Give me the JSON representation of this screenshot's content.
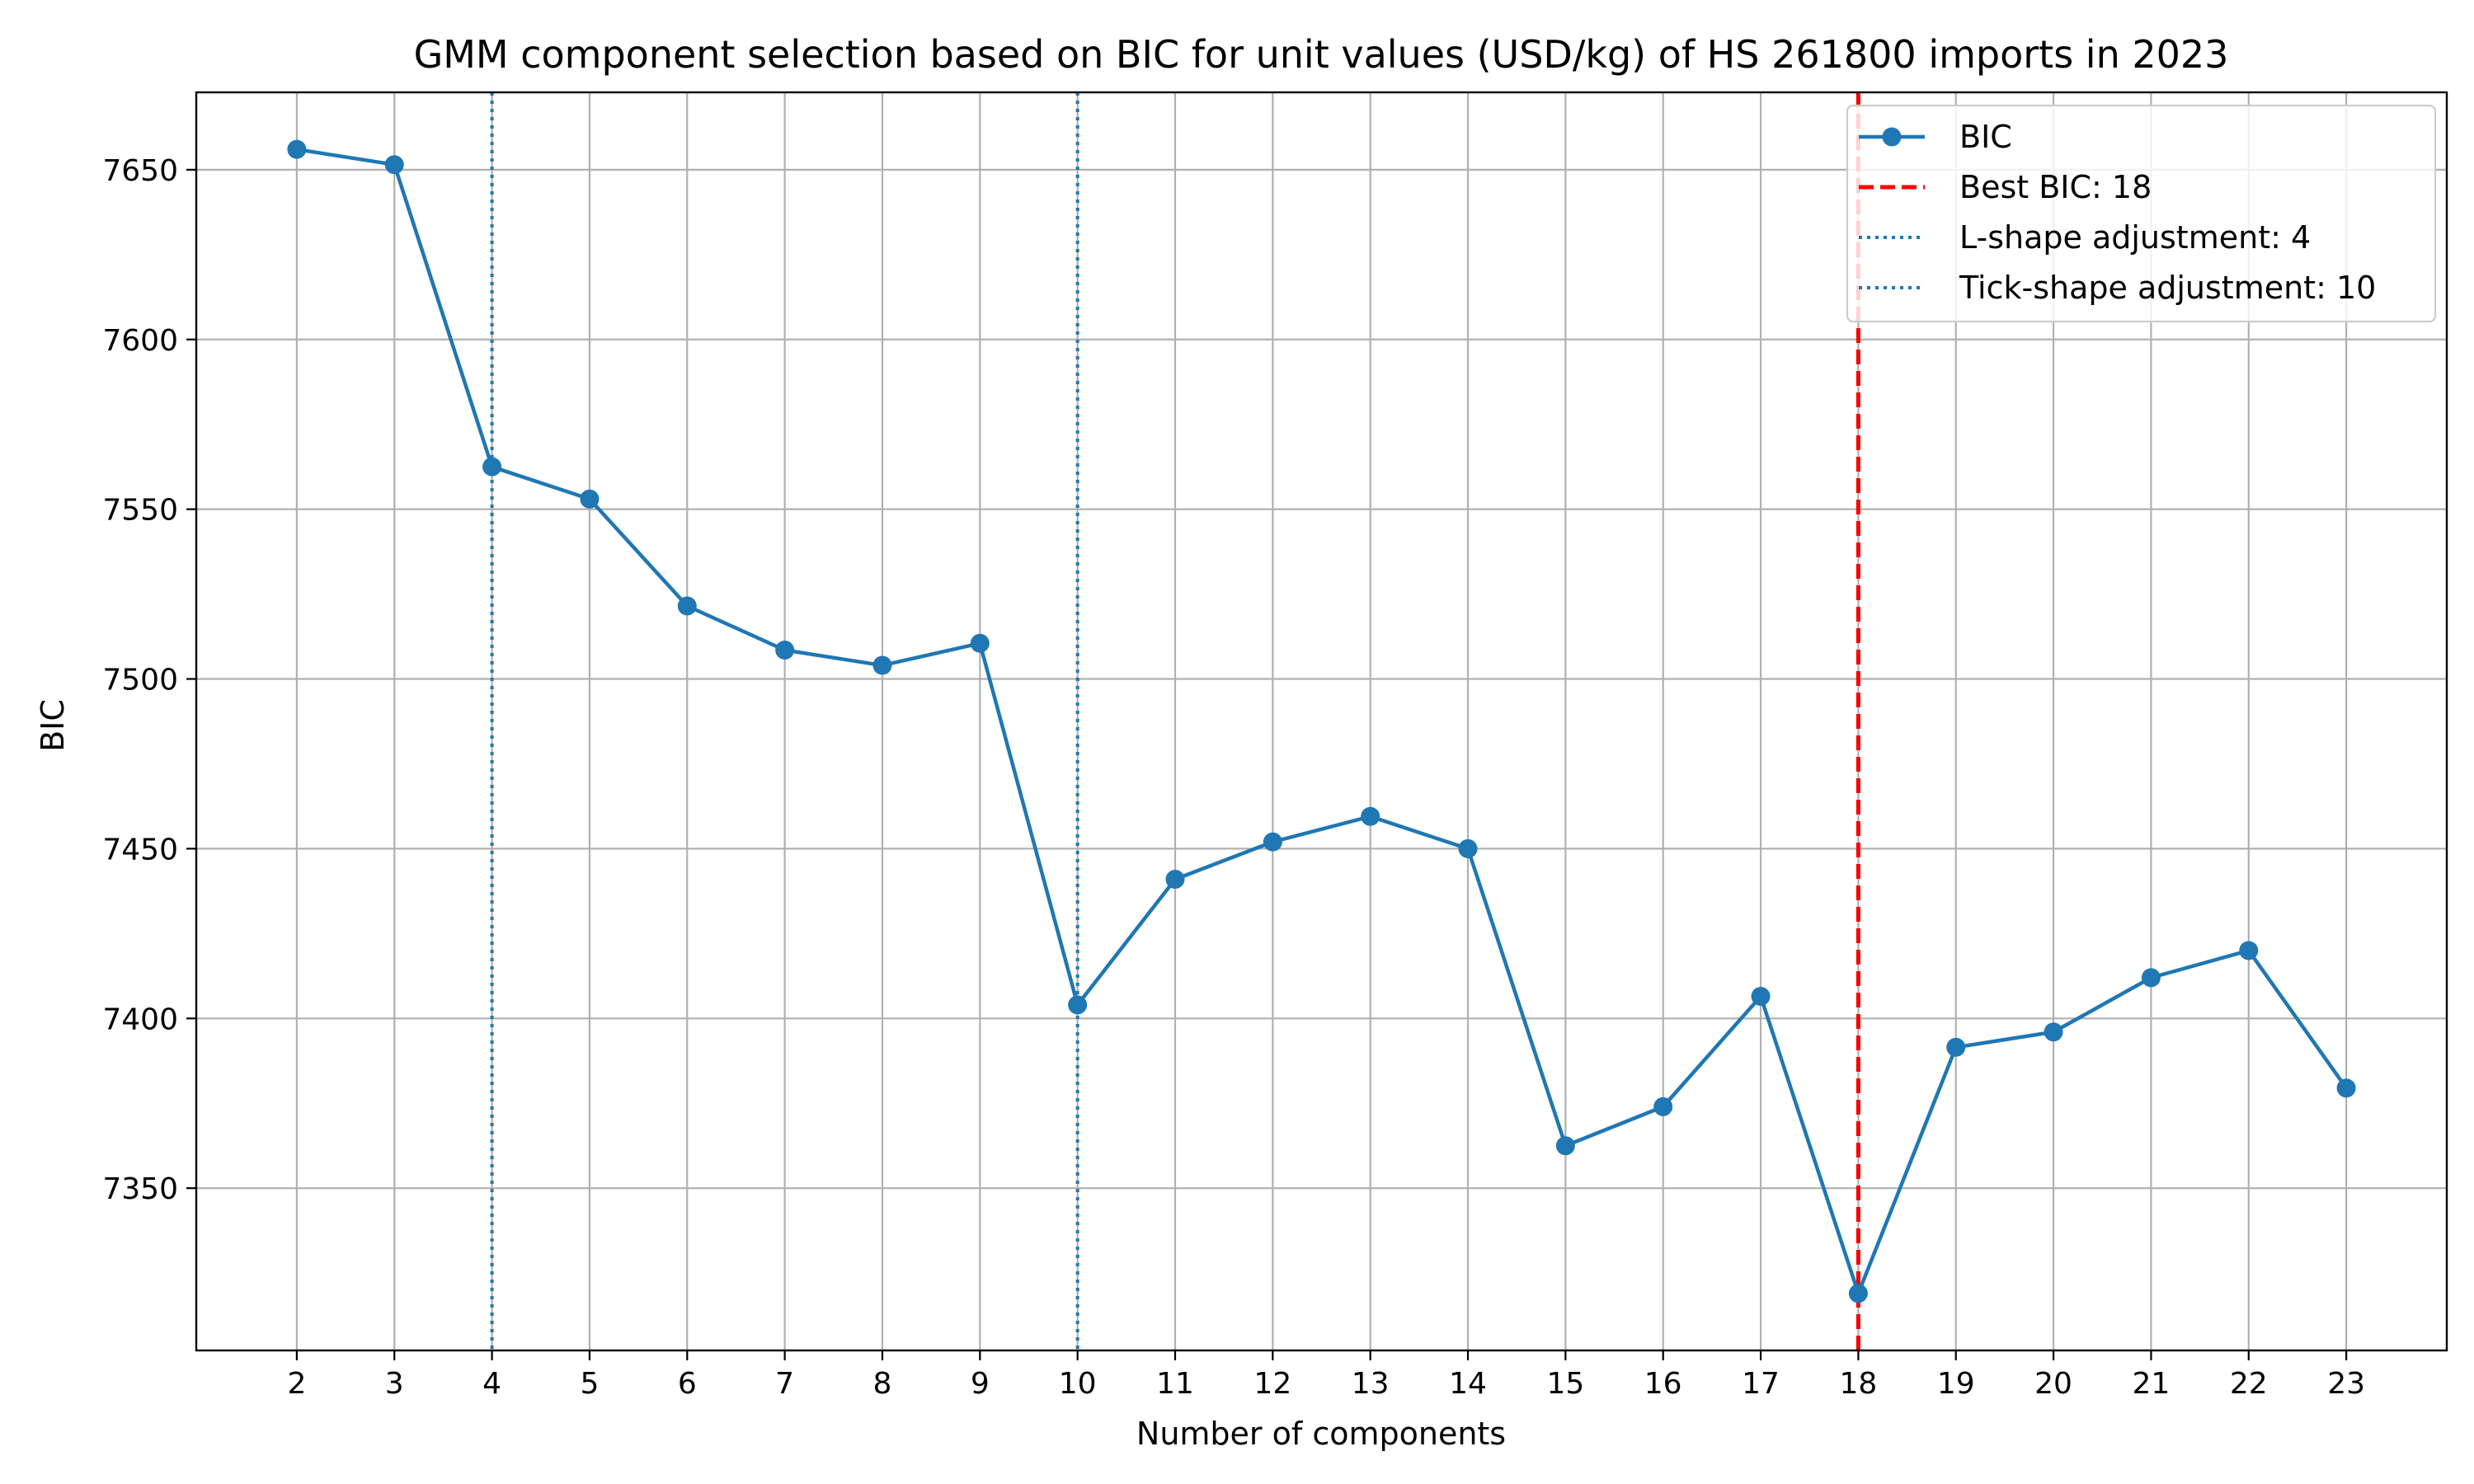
{
  "chart_data": {
    "type": "line",
    "title": "GMM component selection based on BIC for unit values (USD/kg) of HS 261800 imports in 2023",
    "xlabel": "Number of components",
    "ylabel": "BIC",
    "x": [
      2,
      3,
      4,
      5,
      6,
      7,
      8,
      9,
      10,
      11,
      12,
      13,
      14,
      15,
      16,
      17,
      18,
      19,
      20,
      21,
      22,
      23
    ],
    "series": [
      {
        "name": "BIC",
        "color": "#1f77b4",
        "values": [
          7656,
          7651.5,
          7562.5,
          7553,
          7521.5,
          7508.5,
          7504,
          7510.5,
          7404,
          7441,
          7452,
          7459.5,
          7450,
          7362.5,
          7374,
          7406.5,
          7319,
          7391.5,
          7396,
          7412,
          7420,
          7379.5
        ]
      }
    ],
    "vlines": [
      {
        "name": "Best BIC: 18",
        "x": 18,
        "color": "#ff0000",
        "style": "dashed"
      },
      {
        "name": "L-shape adjustment: 4",
        "x": 4,
        "color": "#1f77b4",
        "style": "dotted"
      },
      {
        "name": "Tick-shape adjustment: 10",
        "x": 10,
        "color": "#1f77b4",
        "style": "dotted"
      }
    ],
    "xlim": [
      0.97,
      24.03
    ],
    "ylim": [
      7302.2,
      7672.8
    ],
    "yticks": [
      7350,
      7400,
      7450,
      7500,
      7550,
      7600,
      7650
    ],
    "grid": true,
    "legend_position": "top-right"
  }
}
